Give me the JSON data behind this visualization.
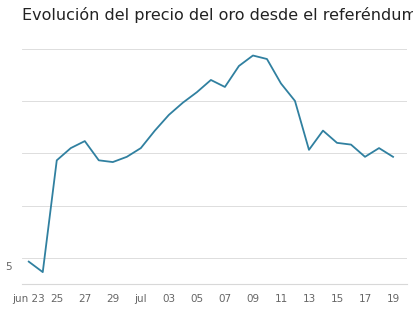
{
  "title": "Evolución del precio del oro desde el referéndum del 'brexit'",
  "title_fontsize": 11.5,
  "line_color": "#3080a0",
  "background_color": "#ffffff",
  "grid_color": "#d8d8d8",
  "tick_label_color": "#666666",
  "x_labels": [
    "jun 23",
    "25",
    "27",
    "29",
    "jul",
    "03",
    "05",
    "07",
    "09",
    "11",
    "13",
    "15",
    "17",
    "19"
  ],
  "x_tick_vals": [
    0,
    2,
    4,
    6,
    8,
    10,
    12,
    14,
    16,
    18,
    20,
    22,
    24,
    26
  ],
  "y_data": [
    1258,
    1252,
    1316,
    1323,
    1327,
    1316,
    1315,
    1318,
    1323,
    1333,
    1342,
    1349,
    1355,
    1362,
    1358,
    1370,
    1376,
    1374,
    1360,
    1350,
    1322,
    1333,
    1326,
    1325,
    1318,
    1323,
    1318
  ],
  "x_data": [
    0,
    1,
    2,
    3,
    4,
    5,
    6,
    7,
    8,
    9,
    10,
    11,
    12,
    13,
    14,
    15,
    16,
    17,
    18,
    19,
    20,
    21,
    22,
    23,
    24,
    25,
    26
  ],
  "ylim": [
    1245,
    1390
  ],
  "ytick_val": 1255,
  "ytick_label": "5",
  "tick_fontsize": 7.5
}
